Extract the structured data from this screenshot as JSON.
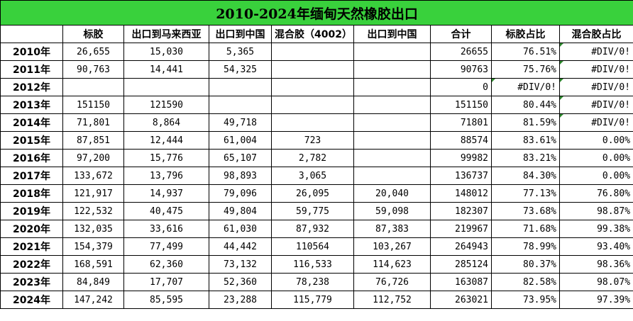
{
  "title": "2010-2024年缅甸天然橡胶出口",
  "headers": [
    "",
    "标胶",
    "出口到马来西亚",
    "出口到中国",
    "混合胶（4002）",
    "出口到中国",
    "合计",
    "标胶占比",
    "混合胶占比"
  ],
  "rows": [
    {
      "year": "2010年",
      "biaojiao": "26,655",
      "malaysia": "15,030",
      "china1": "5,365",
      "hunhe": "",
      "china2": "",
      "total": "26655",
      "biao_pct": "76.51%",
      "hunhe_pct": "#DIV/0!"
    },
    {
      "year": "2011年",
      "biaojiao": "90,763",
      "malaysia": "14,441",
      "china1": "54,325",
      "hunhe": "",
      "china2": "",
      "total": "90763",
      "biao_pct": "75.76%",
      "hunhe_pct": "#DIV/0!"
    },
    {
      "year": "2012年",
      "biaojiao": "",
      "malaysia": "",
      "china1": "",
      "hunhe": "",
      "china2": "",
      "total": "0",
      "biao_pct": "#DIV/0!",
      "hunhe_pct": "#DIV/0!"
    },
    {
      "year": "2013年",
      "biaojiao": "151150",
      "malaysia": "121590",
      "china1": "",
      "hunhe": "",
      "china2": "",
      "total": "151150",
      "biao_pct": "80.44%",
      "hunhe_pct": "#DIV/0!"
    },
    {
      "year": "2014年",
      "biaojiao": "71,801",
      "malaysia": "8,864",
      "china1": "49,718",
      "hunhe": "",
      "china2": "",
      "total": "71801",
      "biao_pct": "81.59%",
      "hunhe_pct": "#DIV/0!"
    },
    {
      "year": "2015年",
      "biaojiao": "87,851",
      "malaysia": "12,444",
      "china1": "61,004",
      "hunhe": "723",
      "china2": "",
      "total": "88574",
      "biao_pct": "83.61%",
      "hunhe_pct": "0.00%"
    },
    {
      "year": "2016年",
      "biaojiao": "97,200",
      "malaysia": "15,776",
      "china1": "65,107",
      "hunhe": "2,782",
      "china2": "",
      "total": "99982",
      "biao_pct": "83.21%",
      "hunhe_pct": "0.00%"
    },
    {
      "year": "2017年",
      "biaojiao": "133,672",
      "malaysia": "13,796",
      "china1": "98,893",
      "hunhe": "3,065",
      "china2": "",
      "total": "136737",
      "biao_pct": "84.30%",
      "hunhe_pct": "0.00%"
    },
    {
      "year": "2018年",
      "biaojiao": "121,917",
      "malaysia": "14,937",
      "china1": "79,096",
      "hunhe": "26,095",
      "china2": "20,040",
      "total": "148012",
      "biao_pct": "77.13%",
      "hunhe_pct": "76.80%"
    },
    {
      "year": "2019年",
      "biaojiao": "122,532",
      "malaysia": "40,475",
      "china1": "49,804",
      "hunhe": "59,775",
      "china2": "59,098",
      "total": "182307",
      "biao_pct": "73.68%",
      "hunhe_pct": "98.87%"
    },
    {
      "year": "2020年",
      "biaojiao": "132,035",
      "malaysia": "33,616",
      "china1": "61,030",
      "hunhe": "87,932",
      "china2": "87,383",
      "total": "219967",
      "biao_pct": "71.68%",
      "hunhe_pct": "99.38%"
    },
    {
      "year": "2021年",
      "biaojiao": "154,379",
      "malaysia": "77,499",
      "china1": "44,442",
      "hunhe": "110564",
      "china2": "103,267",
      "total": "264943",
      "biao_pct": "78.99%",
      "hunhe_pct": "93.40%"
    },
    {
      "year": "2022年",
      "biaojiao": "168,591",
      "malaysia": "62,360",
      "china1": "73,132",
      "hunhe": "116,533",
      "china2": "114,623",
      "total": "285124",
      "biao_pct": "80.37%",
      "hunhe_pct": "98.36%"
    },
    {
      "year": "2023年",
      "biaojiao": "84,849",
      "malaysia": "17,707",
      "china1": "52,360",
      "hunhe": "78,238",
      "china2": "76,726",
      "total": "163087",
      "biao_pct": "82.58%",
      "hunhe_pct": "98.07%"
    },
    {
      "year": "2024年",
      "biaojiao": "147,242",
      "malaysia": "85,595",
      "china1": "23,288",
      "hunhe": "115,779",
      "china2": "112,752",
      "total": "263021",
      "biao_pct": "73.95%",
      "hunhe_pct": "97.39%"
    }
  ],
  "flag_color": "#2e8b2e"
}
